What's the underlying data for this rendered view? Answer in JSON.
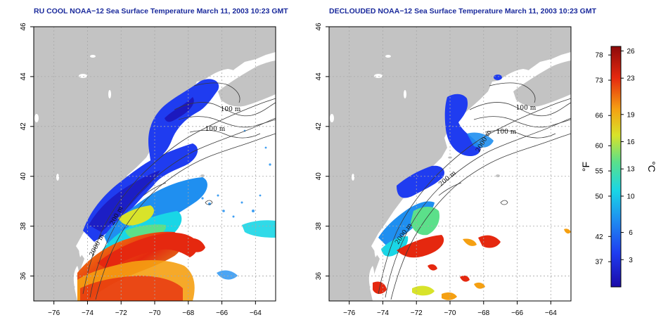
{
  "panels": [
    {
      "id": "left",
      "title": "RU COOL NOAA−12 Sea Surface Temperature March 11, 2003 10:23 GMT",
      "contour_labels": [
        "100 m",
        "100 m",
        "200 m",
        "2000 m"
      ]
    },
    {
      "id": "right",
      "title": "DECLOUDED NOAA−12 Sea Surface Temperature March 11, 2003 10:23 GMT",
      "contour_labels": [
        "100 m",
        "100 m",
        "200 m",
        "2000 m",
        "2000 m"
      ]
    }
  ],
  "axes": {
    "x_ticks": [
      "−76",
      "−74",
      "−72",
      "−70",
      "−68",
      "−66",
      "−64"
    ],
    "x_values": [
      -76,
      -74,
      -72,
      -70,
      -68,
      -66,
      -64
    ],
    "y_ticks": [
      "36",
      "38",
      "40",
      "42",
      "44",
      "46"
    ],
    "y_values": [
      36,
      38,
      40,
      42,
      44,
      46
    ],
    "lon_range": [
      -77.2,
      -62.8
    ],
    "lat_range": [
      35.0,
      46.0
    ]
  },
  "colorbar": {
    "fahrenheit_label": "°F",
    "celsius_label": "°C",
    "fahrenheit_ticks": [
      "78",
      "73",
      "66",
      "60",
      "55",
      "50",
      "42",
      "37"
    ],
    "fahrenheit_values": [
      78,
      73,
      66,
      60,
      55,
      50,
      42,
      37
    ],
    "celsius_ticks": [
      "26",
      "23",
      "19",
      "16",
      "13",
      "10",
      "6",
      "3"
    ],
    "celsius_values": [
      26,
      23,
      19,
      16,
      13,
      10,
      6,
      3
    ],
    "range_c": [
      0,
      26.5
    ],
    "colors": [
      "#1b0aa8",
      "#1f3cf0",
      "#1f8ff0",
      "#19d6e6",
      "#5be08a",
      "#d8e32a",
      "#f5a012",
      "#e5280f",
      "#8c0a0a"
    ]
  },
  "colors": {
    "land": "#c3c3c3",
    "grid": "#a8a8a8",
    "title": "#1a2a9c"
  }
}
